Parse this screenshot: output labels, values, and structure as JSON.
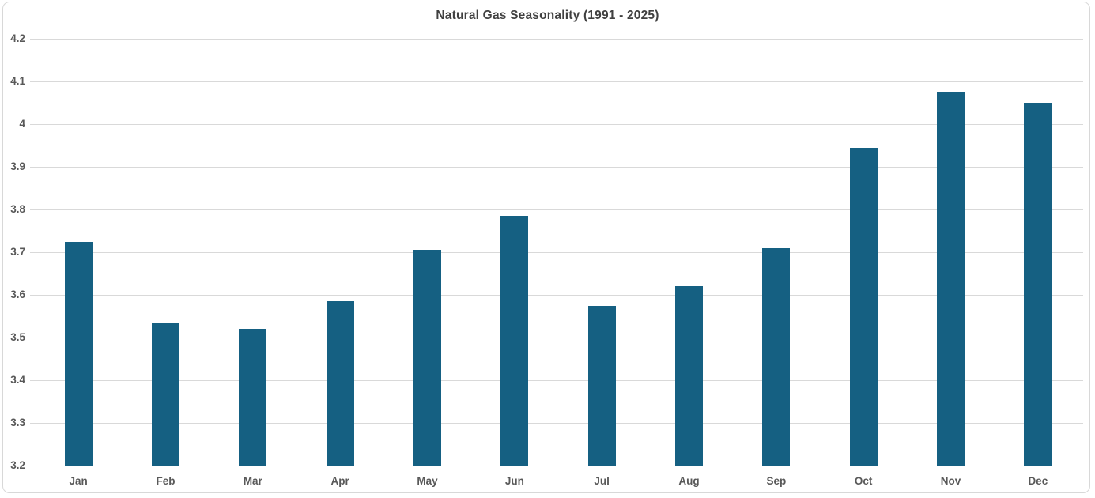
{
  "chart_data": {
    "type": "bar",
    "title": "Natural Gas Seasonality (1991 - 2025)",
    "categories": [
      "Jan",
      "Feb",
      "Mar",
      "Apr",
      "May",
      "Jun",
      "Jul",
      "Aug",
      "Sep",
      "Oct",
      "Nov",
      "Dec"
    ],
    "values": [
      3.725,
      3.535,
      3.52,
      3.585,
      3.705,
      3.785,
      3.575,
      3.62,
      3.71,
      3.945,
      4.075,
      4.05
    ],
    "xlabel": "",
    "ylabel": "",
    "ylim": [
      3.2,
      4.2
    ],
    "ytick_step": 0.1,
    "ytick_labels": [
      "3.2",
      "3.3",
      "3.4",
      "3.5",
      "3.6",
      "3.7",
      "3.8",
      "3.9",
      "4",
      "4.1",
      "4.2"
    ],
    "grid": true,
    "legend": "none",
    "bar_color": "#156082",
    "gridline_color": "#d9d9d9",
    "axis_line_color": "#d9d9d9",
    "title_color": "#404040",
    "tick_label_color": "#595959",
    "background": "#ffffff"
  }
}
